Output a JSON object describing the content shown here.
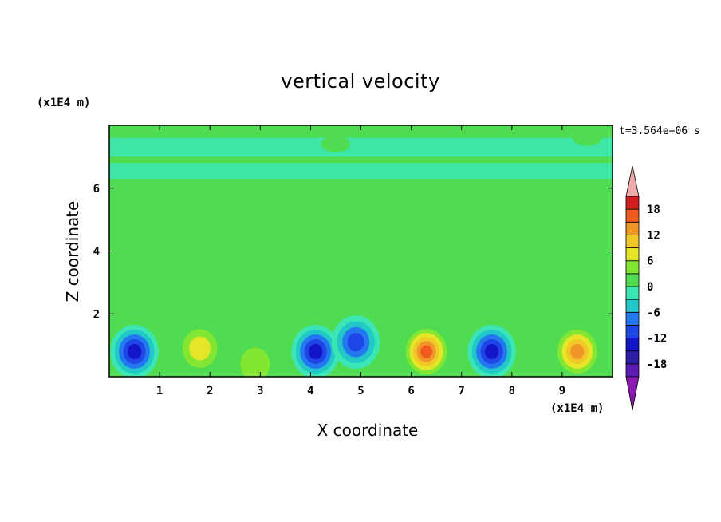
{
  "chart_data": {
    "type": "heatmap",
    "title": "vertical velocity",
    "xlabel": "X coordinate",
    "ylabel": "Z coordinate",
    "x_unit": "(x1E4 m)",
    "y_unit": "(x1E4 m)",
    "annotation": "t=3.564e+06 s",
    "xlim": [
      0,
      10
    ],
    "ylim": [
      0,
      8
    ],
    "xticks": [
      "1",
      "2",
      "3",
      "4",
      "5",
      "6",
      "7",
      "8",
      "9"
    ],
    "yticks": [
      "2",
      "4",
      "6"
    ],
    "colorbar": {
      "levels": [
        -21,
        -18,
        -15,
        -12,
        -9,
        -6,
        -3,
        0,
        3,
        6,
        9,
        12,
        15,
        18,
        21
      ],
      "tick_labels": [
        "18",
        "12",
        "6",
        "0",
        "-6",
        "-12",
        "-18"
      ],
      "colors": [
        "#8a1ab0",
        "#5a1ab4",
        "#2d1ea8",
        "#1414c8",
        "#1e46e6",
        "#2378f0",
        "#22c8c8",
        "#3ce6b4",
        "#50dc50",
        "#82e632",
        "#e6e628",
        "#f0c828",
        "#f09628",
        "#f05a1e",
        "#d21e1e",
        "#f0aaaa"
      ]
    },
    "background_value": 0,
    "features": [
      {
        "type": "downdraft",
        "x": 0.5,
        "z": 0.8,
        "peak": -15
      },
      {
        "type": "updraft",
        "x": 1.8,
        "z": 0.9,
        "peak": 9
      },
      {
        "type": "updraft",
        "x": 2.9,
        "z": 0.4,
        "peak": 6
      },
      {
        "type": "downdraft",
        "x": 4.1,
        "z": 0.8,
        "peak": -15
      },
      {
        "type": "downdraft",
        "x": 4.9,
        "z": 1.1,
        "peak": -12
      },
      {
        "type": "updraft",
        "x": 6.3,
        "z": 0.8,
        "peak": 18
      },
      {
        "type": "downdraft",
        "x": 7.6,
        "z": 0.8,
        "peak": -15
      },
      {
        "type": "updraft",
        "x": 9.3,
        "z": 0.8,
        "peak": 15
      },
      {
        "type": "updraft",
        "x": 4.5,
        "z": 7.4,
        "peak": 3
      },
      {
        "type": "updraft",
        "x": 9.5,
        "z": 7.6,
        "peak": 3
      }
    ]
  }
}
